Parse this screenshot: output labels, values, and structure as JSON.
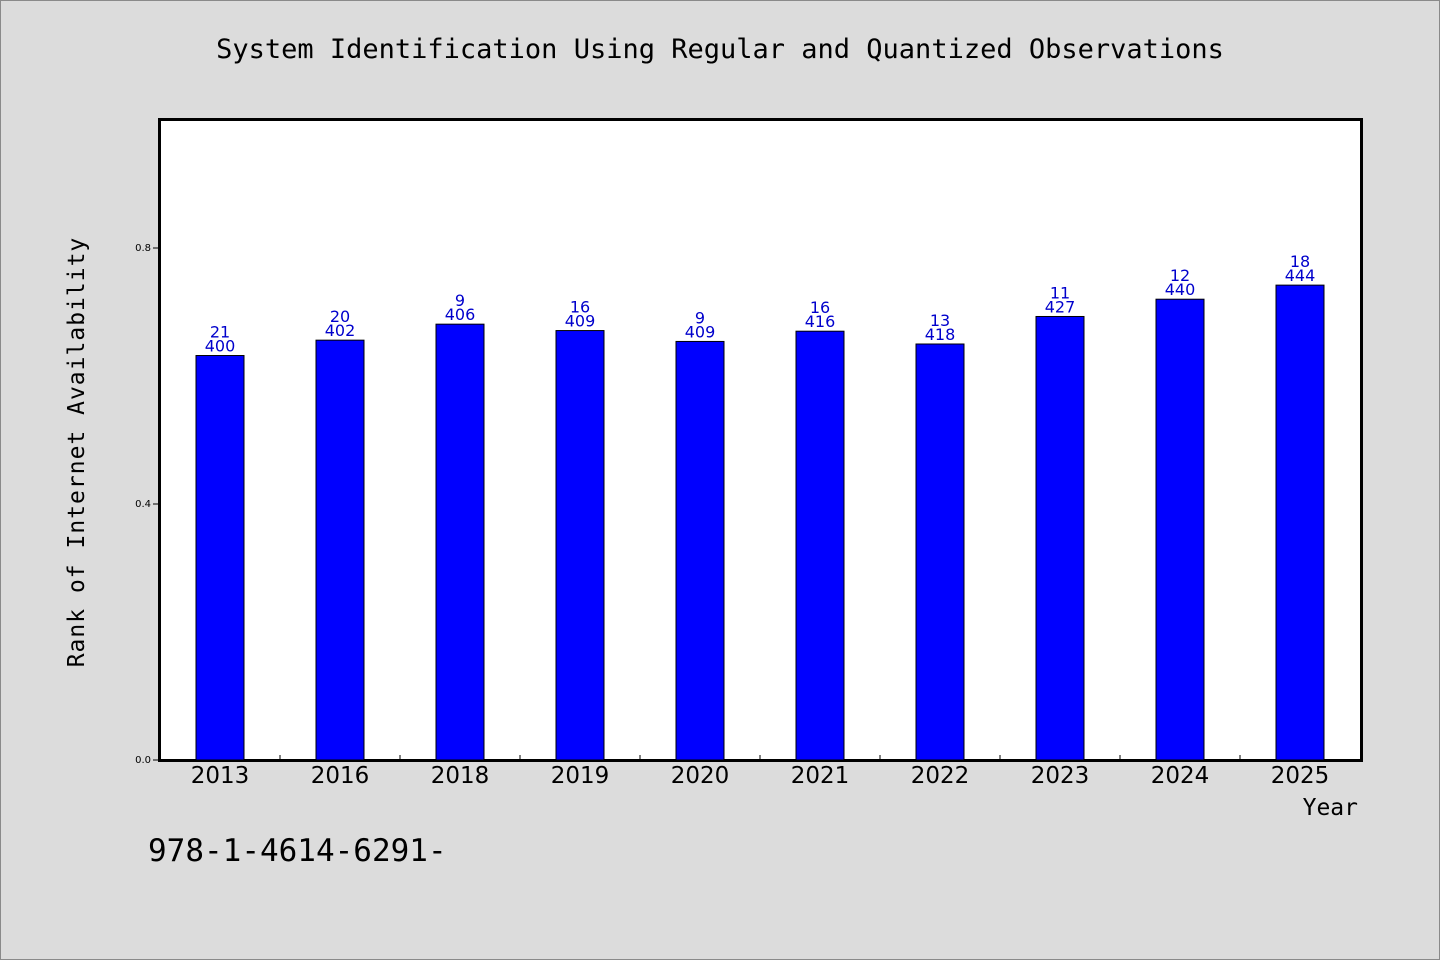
{
  "chart_data": {
    "type": "bar",
    "title": "System Identification Using Regular and Quantized Observations",
    "xlabel": "Year",
    "ylabel": "Rank of Internet Availability",
    "ylim": [
      0,
      1.0
    ],
    "yticks": [
      "0.0",
      "0.4",
      "0.8"
    ],
    "grid": false,
    "bar_color": "#0000ff",
    "label_color": "#0000cc",
    "categories": [
      "2013",
      "2016",
      "2018",
      "2019",
      "2020",
      "2021",
      "2022",
      "2023",
      "2024",
      "2025"
    ],
    "values": [
      0.632,
      0.656,
      0.681,
      0.671,
      0.654,
      0.67,
      0.65,
      0.693,
      0.72,
      0.742
    ],
    "annotations_top": [
      "21",
      "20",
      "9",
      "16",
      "9",
      "16",
      "13",
      "11",
      "12",
      "18"
    ],
    "annotations_bottom": [
      "400",
      "402",
      "406",
      "409",
      "409",
      "416",
      "418",
      "427",
      "440",
      "444"
    ]
  },
  "footer": {
    "text": "978-1-4614-6291-"
  }
}
